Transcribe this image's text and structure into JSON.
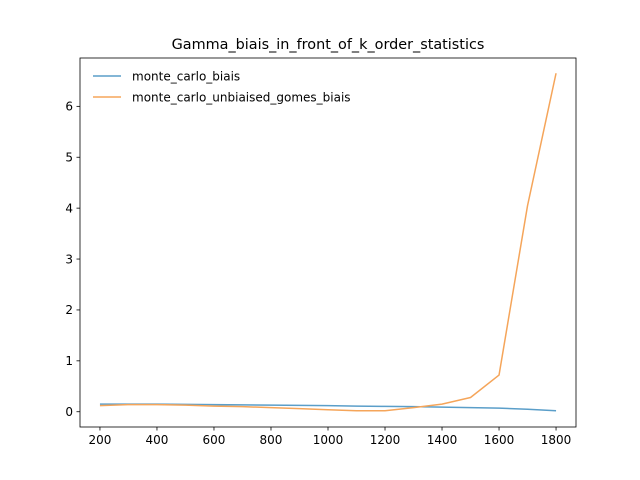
{
  "chart_data": {
    "type": "line",
    "title": "Gamma_biais_in_front_of_k_order_statistics",
    "xlabel": "",
    "ylabel": "",
    "x": [
      200,
      300,
      400,
      500,
      600,
      700,
      800,
      900,
      1000,
      1100,
      1200,
      1300,
      1400,
      1500,
      1600,
      1700,
      1800
    ],
    "xlim": [
      130,
      1870
    ],
    "ylim": [
      -0.3,
      6.95
    ],
    "xticks": [
      200,
      400,
      600,
      800,
      1000,
      1200,
      1400,
      1600,
      1800
    ],
    "yticks": [
      0,
      1,
      2,
      3,
      4,
      5,
      6
    ],
    "grid": false,
    "legend_position": "top-left",
    "series": [
      {
        "name": "monte_carlo_biais",
        "color": "#5a9ec9",
        "values": [
          0.15,
          0.15,
          0.15,
          0.145,
          0.14,
          0.135,
          0.13,
          0.125,
          0.12,
          0.11,
          0.105,
          0.1,
          0.09,
          0.08,
          0.07,
          0.05,
          0.02
        ]
      },
      {
        "name": "monte_carlo_unbiaised_gomes_biais",
        "color": "#f5a55a",
        "values": [
          0.12,
          0.14,
          0.14,
          0.13,
          0.11,
          0.1,
          0.08,
          0.06,
          0.04,
          0.02,
          0.02,
          0.08,
          0.15,
          0.28,
          0.72,
          4.05,
          6.65
        ]
      }
    ]
  }
}
